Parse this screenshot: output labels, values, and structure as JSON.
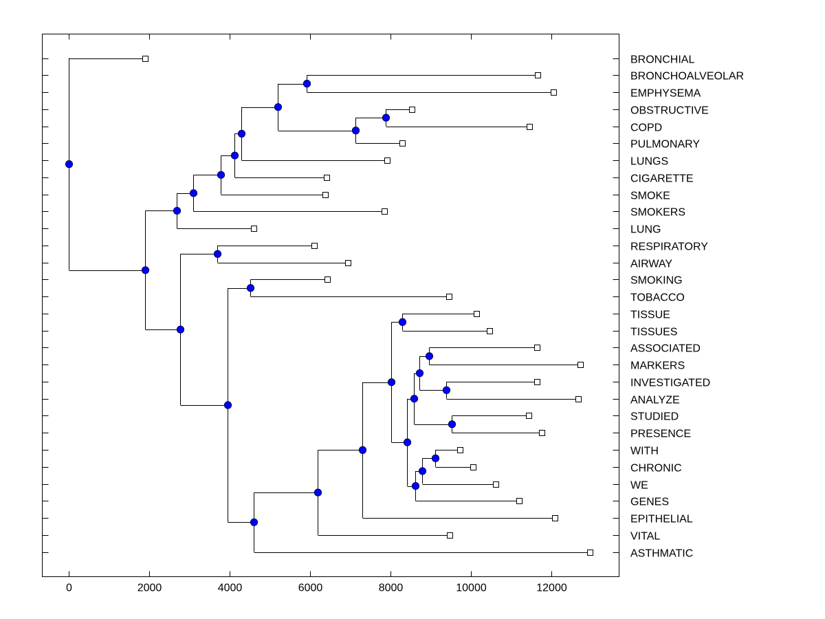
{
  "chart_data": {
    "type": "dendrogram",
    "title": "",
    "xlabel": "",
    "ylabel": "",
    "xlim": [
      -660,
      13680
    ],
    "xticks": [
      0,
      2000,
      4000,
      6000,
      8000,
      10000,
      12000
    ],
    "xtick_labels": [
      "0",
      "2000",
      "4000",
      "6000",
      "8000",
      "10000",
      "12000"
    ],
    "grid": false,
    "leaves": [
      {
        "label": "BRONCHIAL",
        "x": 1890
      },
      {
        "label": "BRONCHOALVEOLAR",
        "x": 11660
      },
      {
        "label": "EMPHYSEMA",
        "x": 12050
      },
      {
        "label": "OBSTRUCTIVE",
        "x": 8535
      },
      {
        "label": "COPD",
        "x": 11450
      },
      {
        "label": "PULMONARY",
        "x": 8280
      },
      {
        "label": "LUNGS",
        "x": 7905
      },
      {
        "label": "CIGARETTE",
        "x": 6410
      },
      {
        "label": "SMOKE",
        "x": 6375
      },
      {
        "label": "SMOKERS",
        "x": 7840
      },
      {
        "label": "LUNG",
        "x": 4595
      },
      {
        "label": "RESPIRATORY",
        "x": 6105
      },
      {
        "label": "AIRWAY",
        "x": 6940
      },
      {
        "label": "SMOKING",
        "x": 6430
      },
      {
        "label": "TOBACCO",
        "x": 9455
      },
      {
        "label": "TISSUE",
        "x": 10130
      },
      {
        "label": "TISSUES",
        "x": 10455
      },
      {
        "label": "ASSOCIATED",
        "x": 11630
      },
      {
        "label": "MARKERS",
        "x": 12715
      },
      {
        "label": "INVESTIGATED",
        "x": 11645
      },
      {
        "label": "ANALYZE",
        "x": 12665
      },
      {
        "label": "STUDIED",
        "x": 11440
      },
      {
        "label": "PRESENCE",
        "x": 11765
      },
      {
        "label": "WITH",
        "x": 9725
      },
      {
        "label": "CHRONIC",
        "x": 10050
      },
      {
        "label": "WE",
        "x": 10615
      },
      {
        "label": "GENES",
        "x": 11185
      },
      {
        "label": "EPITHELIAL",
        "x": 12090
      },
      {
        "label": "VITAL",
        "x": 9470
      },
      {
        "label": "ASTHMATIC",
        "x": 12955
      }
    ],
    "tree": {
      "x": 0,
      "children": [
        {
          "leaf": 0
        },
        {
          "x": 1890,
          "children": [
            {
              "x": 2675,
              "children": [
                {
                  "x": 3095,
                  "children": [
                    {
                      "x": 3770,
                      "children": [
                        {
                          "x": 4110,
                          "children": [
                            {
                              "x": 4280,
                              "children": [
                                {
                                  "x": 5200,
                                  "children": [
                                    {
                                      "x": 5915,
                                      "children": [
                                        {
                                          "leaf": 1
                                        },
                                        {
                                          "leaf": 2
                                        }
                                      ]
                                    },
                                    {
                                      "x": 7120,
                                      "children": [
                                        {
                                          "x": 7885,
                                          "children": [
                                            {
                                              "leaf": 3
                                            },
                                            {
                                              "leaf": 4
                                            }
                                          ]
                                        },
                                        {
                                          "leaf": 5
                                        }
                                      ]
                                    }
                                  ]
                                },
                                {
                                  "leaf": 6
                                }
                              ]
                            },
                            {
                              "leaf": 7
                            }
                          ]
                        },
                        {
                          "leaf": 8
                        }
                      ]
                    },
                    {
                      "leaf": 9
                    }
                  ]
                },
                {
                  "leaf": 10
                }
              ]
            },
            {
              "x": 2760,
              "children": [
                {
                  "x": 3690,
                  "children": [
                    {
                      "leaf": 11
                    },
                    {
                      "leaf": 12
                    }
                  ]
                },
                {
                  "x": 3945,
                  "children": [
                    {
                      "x": 4510,
                      "children": [
                        {
                          "leaf": 13
                        },
                        {
                          "leaf": 14
                        }
                      ]
                    },
                    {
                      "x": 4595,
                      "children": [
                        {
                          "x": 6190,
                          "children": [
                            {
                              "x": 7295,
                              "children": [
                                {
                                  "x": 8010,
                                  "children": [
                                    {
                                      "x": 8290,
                                      "children": [
                                        {
                                          "leaf": 15
                                        },
                                        {
                                          "leaf": 16
                                        }
                                      ]
                                    },
                                    {
                                      "x": 8415,
                                      "children": [
                                        {
                                          "x": 8585,
                                          "children": [
                                            {
                                              "x": 8720,
                                              "children": [
                                                {
                                                  "x": 8960,
                                                  "children": [
                                                    {
                                                      "leaf": 17
                                                    },
                                                    {
                                                      "leaf": 18
                                                    }
                                                  ]
                                                },
                                                {
                                                  "x": 9385,
                                                  "children": [
                                                    {
                                                      "leaf": 19
                                                    },
                                                    {
                                                      "leaf": 20
                                                    }
                                                  ]
                                                }
                                              ]
                                            },
                                            {
                                              "x": 9520,
                                              "children": [
                                                {
                                                  "leaf": 21
                                                },
                                                {
                                                  "leaf": 22
                                                }
                                              ]
                                            }
                                          ]
                                        },
                                        {
                                          "x": 8605,
                                          "children": [
                                            {
                                              "x": 8790,
                                              "children": [
                                                {
                                                  "x": 9115,
                                                  "children": [
                                                    {
                                                      "leaf": 23
                                                    },
                                                    {
                                                      "leaf": 24
                                                    }
                                                  ]
                                                },
                                                {
                                                  "leaf": 25
                                                }
                                              ]
                                            },
                                            {
                                              "leaf": 26
                                            }
                                          ]
                                        }
                                      ]
                                    }
                                  ]
                                },
                                {
                                  "leaf": 27
                                }
                              ]
                            },
                            {
                              "leaf": 28
                            }
                          ]
                        },
                        {
                          "leaf": 29
                        }
                      ]
                    }
                  ]
                }
              ]
            }
          ]
        }
      ]
    },
    "colors": {
      "internal_node_fill": "#0000ff",
      "leaf_marker_fill": "#ffffff",
      "line": "#000000"
    },
    "markers": {
      "internal_node": "filled-circle",
      "leaf": "open-square"
    }
  }
}
